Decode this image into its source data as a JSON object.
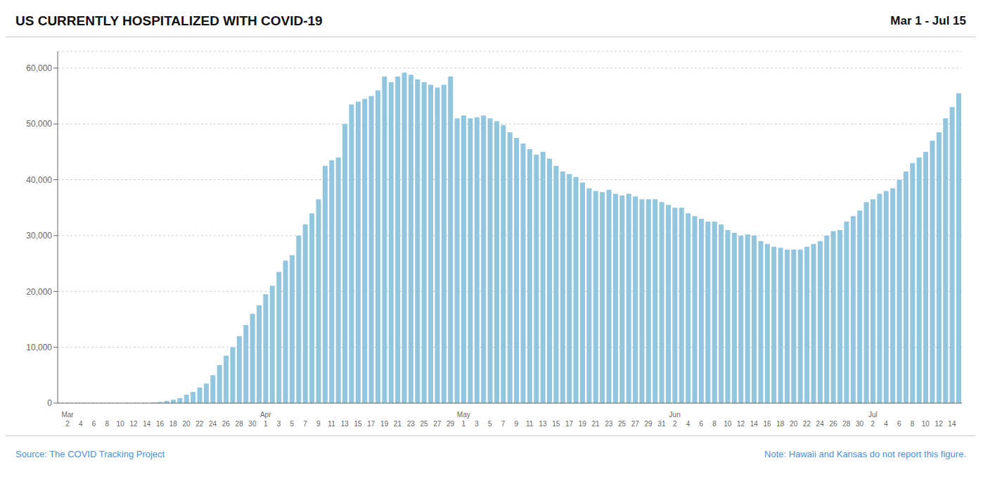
{
  "chart_data": {
    "type": "bar",
    "title": "US CURRENTLY HOSPITALIZED WITH COVID-19",
    "subtitle": "Mar 1 - Jul 15",
    "annotations": [
      "Source: The COVID Tracking Project",
      "Note: Hawaii and Kansas do not report this figure."
    ],
    "color": "#92c5de",
    "grid": true,
    "ylim": [
      0,
      63000
    ],
    "yticks": [
      0,
      {
        "value": 10000,
        "label": "10,000"
      },
      {
        "value": 20000,
        "label": "20,000"
      },
      {
        "value": 30000,
        "label": "30,000"
      },
      {
        "value": 40000,
        "label": "40,000"
      },
      {
        "value": 50000,
        "label": "50,000"
      },
      {
        "value": 60000,
        "label": "60,000"
      }
    ],
    "categories": [
      null,
      "Mar 2",
      null,
      "4",
      null,
      "6",
      null,
      "8",
      null,
      "10",
      null,
      "12",
      null,
      "14",
      null,
      "16",
      null,
      "18",
      null,
      "20",
      null,
      "22",
      null,
      "24",
      null,
      "26",
      null,
      "28",
      null,
      "30",
      null,
      "Apr 1",
      null,
      "3",
      null,
      "5",
      null,
      "7",
      null,
      "9",
      null,
      "11",
      null,
      "13",
      null,
      "15",
      null,
      "17",
      null,
      "19",
      null,
      "21",
      null,
      "23",
      null,
      "25",
      null,
      "27",
      null,
      "29",
      null,
      "May 1",
      null,
      "3",
      null,
      "5",
      null,
      "7",
      null,
      "9",
      null,
      "11",
      null,
      "13",
      null,
      "15",
      null,
      "17",
      null,
      "19",
      null,
      "21",
      null,
      "23",
      null,
      "25",
      null,
      "27",
      null,
      "29",
      null,
      "31",
      null,
      "Jun 2",
      null,
      "4",
      null,
      "6",
      null,
      "8",
      null,
      "10",
      null,
      "12",
      null,
      "14",
      null,
      "16",
      null,
      "18",
      null,
      "20",
      null,
      "22",
      null,
      "24",
      null,
      "26",
      null,
      "28",
      null,
      "30",
      null,
      "Jul 2",
      null,
      "4",
      null,
      "6",
      null,
      "8",
      null,
      "10",
      null,
      "12",
      null,
      "14",
      null
    ],
    "values": [
      0,
      0,
      0,
      0,
      0,
      0,
      0,
      0,
      0,
      0,
      0,
      0,
      0,
      0,
      100,
      200,
      400,
      600,
      900,
      1500,
      2000,
      2800,
      3500,
      5000,
      6800,
      8500,
      10000,
      12000,
      14000,
      16000,
      17500,
      19500,
      21000,
      23500,
      25500,
      26500,
      30000,
      32000,
      34000,
      36500,
      42500,
      43500,
      44000,
      50000,
      53500,
      54000,
      54500,
      55000,
      56000,
      58500,
      57500,
      58500,
      59200,
      58800,
      58000,
      57500,
      57000,
      56500,
      57000,
      58500,
      51000,
      51500,
      51000,
      51200,
      51500,
      51000,
      50500,
      49800,
      48500,
      47500,
      46500,
      45500,
      44500,
      45000,
      43800,
      42500,
      41500,
      41000,
      40500,
      39500,
      38500,
      38000,
      37800,
      38200,
      37500,
      37200,
      37500,
      37000,
      36500,
      36500,
      36500,
      36000,
      35500,
      35000,
      35000,
      34000,
      33500,
      33000,
      32500,
      32500,
      32000,
      31000,
      30500,
      30000,
      30200,
      30000,
      29000,
      28500,
      28000,
      27800,
      27500,
      27500,
      27500,
      28000,
      28500,
      29000,
      30000,
      30800,
      31000,
      32500,
      33500,
      34500,
      36000,
      36500,
      37500,
      38000,
      38500,
      40000,
      41500,
      43000,
      44000,
      45000,
      47000,
      48500,
      51000,
      53000,
      55500
    ]
  }
}
